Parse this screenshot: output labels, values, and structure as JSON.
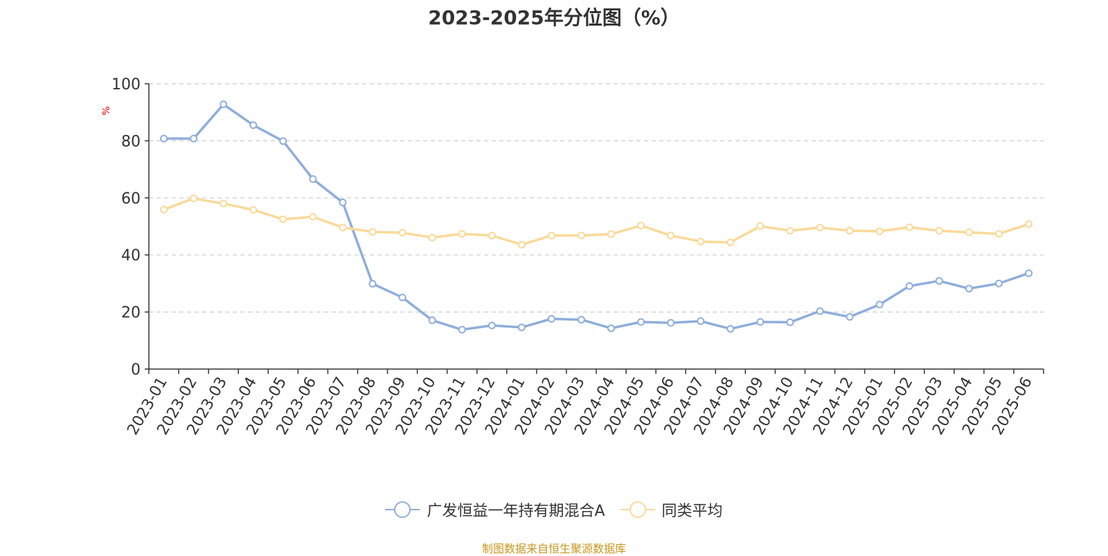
{
  "chart_data": {
    "type": "line",
    "title": "2023-2025年分位图（%）",
    "ylabel": "%",
    "xlabel": "",
    "ylim": [
      0,
      100
    ],
    "yticks": [
      0,
      20,
      40,
      60,
      80,
      100
    ],
    "grid": "horizontal dashed",
    "legend_position": "bottom-center",
    "categories": [
      "2023-01",
      "2023-02",
      "2023-03",
      "2023-04",
      "2023-05",
      "2023-06",
      "2023-07",
      "2023-08",
      "2023-09",
      "2023-10",
      "2023-11",
      "2023-12",
      "2024-01",
      "2024-02",
      "2024-03",
      "2024-04",
      "2024-05",
      "2024-06",
      "2024-07",
      "2024-08",
      "2024-09",
      "2024-10",
      "2024-11",
      "2024-12",
      "2025-01",
      "2025-02",
      "2025-03",
      "2025-04",
      "2025-05",
      "2025-06"
    ],
    "series": [
      {
        "name": "广发恒益一年持有期混合A",
        "color": "#8eaedb",
        "values": [
          80.8,
          80.8,
          92.8,
          85.5,
          79.9,
          66.6,
          58.4,
          29.9,
          25.1,
          17.1,
          13.8,
          15.3,
          14.6,
          17.6,
          17.3,
          14.3,
          16.5,
          16.2,
          16.8,
          14.1,
          16.5,
          16.4,
          20.3,
          18.3,
          22.6,
          29.1,
          30.9,
          28.2,
          30.0,
          33.6
        ]
      },
      {
        "name": "同类平均",
        "color": "#fad998",
        "values": [
          55.9,
          59.8,
          58.0,
          55.8,
          52.5,
          53.4,
          49.6,
          48.1,
          47.8,
          46.1,
          47.4,
          46.8,
          43.6,
          46.8,
          46.8,
          47.3,
          50.3,
          46.8,
          44.7,
          44.4,
          50.1,
          48.5,
          49.6,
          48.5,
          48.3,
          49.7,
          48.5,
          47.9,
          47.4,
          50.8
        ]
      }
    ]
  },
  "source_note": "制图数据来自恒生聚源数据库"
}
